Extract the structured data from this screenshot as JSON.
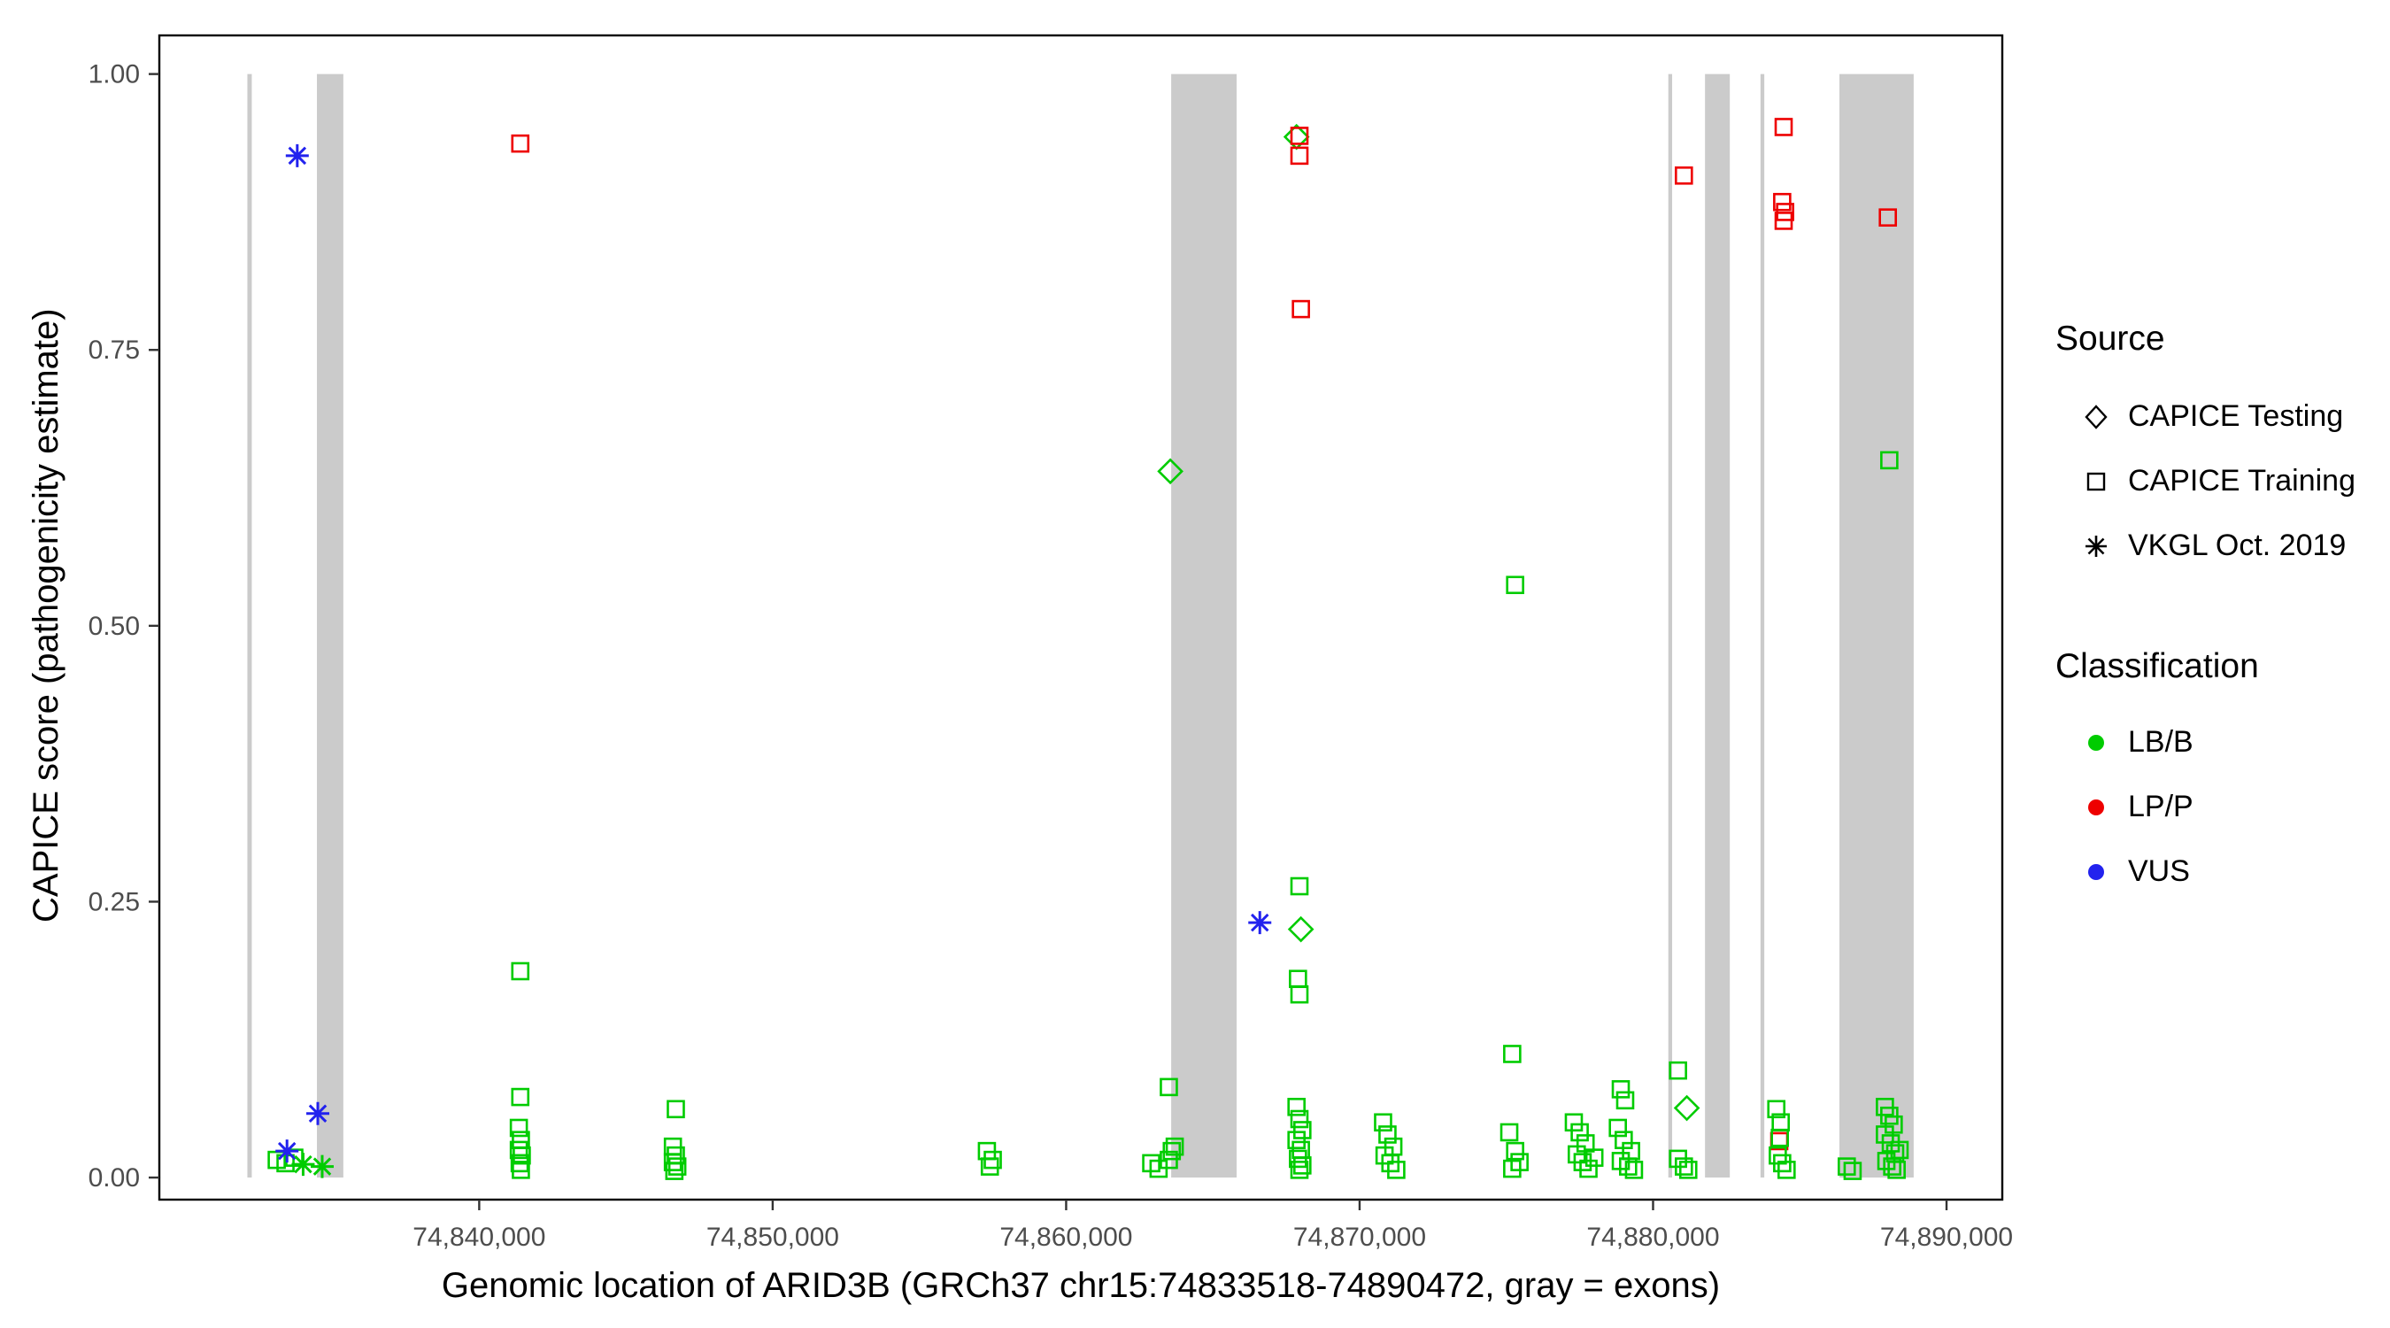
{
  "figure": {
    "x_axis_title": "Genomic location of ARID3B (GRCh37 chr15:74833518-74890472, gray = exons)",
    "y_axis_title": "CAPICE score (pathogenicity estimate)"
  },
  "legend": {
    "source": {
      "title": "Source",
      "items": [
        {
          "label": "CAPICE Testing",
          "symbol": "diamond"
        },
        {
          "label": "CAPICE Training",
          "symbol": "square"
        },
        {
          "label": "VKGL Oct. 2019",
          "symbol": "asterisk"
        }
      ]
    },
    "classification": {
      "title": "Classification",
      "items": [
        {
          "label": "LB/B",
          "color": "#00cc00"
        },
        {
          "label": "LP/P",
          "color": "#ee0000"
        },
        {
          "label": "VUS",
          "color": "#2222ee"
        }
      ]
    }
  },
  "chart_data": {
    "type": "scatter",
    "title": "",
    "xlabel": "Genomic location of ARID3B (GRCh37 chr15:74833518-74890472, gray = exons)",
    "ylabel": "CAPICE score (pathogenicity estimate)",
    "xlim": [
      74829100,
      74891900
    ],
    "ylim": [
      -0.02,
      1.035
    ],
    "grid": false,
    "legend_position": "right",
    "x_ticks": [
      {
        "value": 74840000,
        "label": "74,840,000"
      },
      {
        "value": 74850000,
        "label": "74,850,000"
      },
      {
        "value": 74860000,
        "label": "74,860,000"
      },
      {
        "value": 74870000,
        "label": "74,870,000"
      },
      {
        "value": 74880000,
        "label": "74,880,000"
      },
      {
        "value": 74890000,
        "label": "74,890,000"
      }
    ],
    "y_ticks": [
      {
        "value": 0.0,
        "label": "0.00"
      },
      {
        "value": 0.25,
        "label": "0.25"
      },
      {
        "value": 0.5,
        "label": "0.50"
      },
      {
        "value": 0.75,
        "label": "0.75"
      },
      {
        "value": 1.0,
        "label": "1.00"
      }
    ],
    "colors": {
      "LB/B": "#00cc00",
      "LP/P": "#ee0000",
      "VUS": "#2222ee",
      "exon": "#cbcbcb"
    },
    "exons": [
      [
        74832100,
        74832250
      ],
      [
        74834470,
        74835370
      ],
      [
        74863580,
        74865810
      ],
      [
        74880520,
        74880650
      ],
      [
        74881770,
        74882615
      ],
      [
        74883660,
        74883790
      ],
      [
        74886350,
        74888880
      ]
    ],
    "points_format": [
      "position",
      "score",
      "source(training|testing|vkgl)",
      "classification(LB/B|LP/P|VUS)"
    ],
    "points": [
      [
        74833100,
        0.016,
        "training",
        "LB/B"
      ],
      [
        74833400,
        0.013,
        "training",
        "LB/B"
      ],
      [
        74833700,
        0.018,
        "training",
        "LB/B"
      ],
      [
        74833450,
        0.024,
        "vkgl",
        "VUS"
      ],
      [
        74833800,
        0.926,
        "vkgl",
        "VUS"
      ],
      [
        74834000,
        0.012,
        "vkgl",
        "LB/B"
      ],
      [
        74834500,
        0.058,
        "vkgl",
        "VUS"
      ],
      [
        74834650,
        0.01,
        "vkgl",
        "LB/B"
      ],
      [
        74841400,
        0.937,
        "training",
        "LP/P"
      ],
      [
        74841400,
        0.187,
        "training",
        "LB/B"
      ],
      [
        74841400,
        0.073,
        "training",
        "LB/B"
      ],
      [
        74841350,
        0.045,
        "training",
        "LB/B"
      ],
      [
        74841420,
        0.034,
        "training",
        "LB/B"
      ],
      [
        74841350,
        0.025,
        "training",
        "LB/B"
      ],
      [
        74841450,
        0.02,
        "training",
        "LB/B"
      ],
      [
        74841380,
        0.013,
        "training",
        "LB/B"
      ],
      [
        74841420,
        0.007,
        "training",
        "LB/B"
      ],
      [
        74846700,
        0.062,
        "training",
        "LB/B"
      ],
      [
        74846600,
        0.028,
        "training",
        "LB/B"
      ],
      [
        74846700,
        0.02,
        "training",
        "LB/B"
      ],
      [
        74846600,
        0.014,
        "training",
        "LB/B"
      ],
      [
        74846750,
        0.01,
        "training",
        "LB/B"
      ],
      [
        74846650,
        0.006,
        "training",
        "LB/B"
      ],
      [
        74857300,
        0.024,
        "training",
        "LB/B"
      ],
      [
        74857500,
        0.016,
        "training",
        "LB/B"
      ],
      [
        74857400,
        0.01,
        "training",
        "LB/B"
      ],
      [
        74862900,
        0.013,
        "training",
        "LB/B"
      ],
      [
        74863150,
        0.008,
        "training",
        "LB/B"
      ],
      [
        74863500,
        0.016,
        "training",
        "LB/B"
      ],
      [
        74863600,
        0.024,
        "training",
        "LB/B"
      ],
      [
        74863700,
        0.028,
        "training",
        "LB/B"
      ],
      [
        74863500,
        0.082,
        "training",
        "LB/B"
      ],
      [
        74863550,
        0.64,
        "testing",
        "LB/B"
      ],
      [
        74866600,
        0.231,
        "vkgl",
        "VUS"
      ],
      [
        74867850,
        0.943,
        "testing",
        "LB/B"
      ],
      [
        74867950,
        0.944,
        "training",
        "LP/P"
      ],
      [
        74867950,
        0.926,
        "training",
        "LP/P"
      ],
      [
        74868000,
        0.787,
        "training",
        "LP/P"
      ],
      [
        74867950,
        0.264,
        "training",
        "LB/B"
      ],
      [
        74868000,
        0.225,
        "testing",
        "LB/B"
      ],
      [
        74867900,
        0.18,
        "training",
        "LB/B"
      ],
      [
        74867950,
        0.166,
        "training",
        "LB/B"
      ],
      [
        74867850,
        0.064,
        "training",
        "LB/B"
      ],
      [
        74867950,
        0.053,
        "training",
        "LB/B"
      ],
      [
        74868050,
        0.043,
        "training",
        "LB/B"
      ],
      [
        74867850,
        0.034,
        "training",
        "LB/B"
      ],
      [
        74868000,
        0.025,
        "training",
        "LB/B"
      ],
      [
        74867900,
        0.017,
        "training",
        "LB/B"
      ],
      [
        74868050,
        0.011,
        "training",
        "LB/B"
      ],
      [
        74867950,
        0.007,
        "training",
        "LB/B"
      ],
      [
        74870800,
        0.05,
        "training",
        "LB/B"
      ],
      [
        74870950,
        0.039,
        "training",
        "LB/B"
      ],
      [
        74871150,
        0.028,
        "training",
        "LB/B"
      ],
      [
        74870850,
        0.02,
        "training",
        "LB/B"
      ],
      [
        74871050,
        0.013,
        "training",
        "LB/B"
      ],
      [
        74871250,
        0.007,
        "training",
        "LB/B"
      ],
      [
        74875300,
        0.537,
        "training",
        "LB/B"
      ],
      [
        74875200,
        0.112,
        "training",
        "LB/B"
      ],
      [
        74875100,
        0.041,
        "training",
        "LB/B"
      ],
      [
        74875300,
        0.024,
        "training",
        "LB/B"
      ],
      [
        74875450,
        0.014,
        "training",
        "LB/B"
      ],
      [
        74875200,
        0.008,
        "training",
        "LB/B"
      ],
      [
        74877300,
        0.05,
        "training",
        "LB/B"
      ],
      [
        74877500,
        0.041,
        "training",
        "LB/B"
      ],
      [
        74877700,
        0.031,
        "training",
        "LB/B"
      ],
      [
        74877400,
        0.021,
        "training",
        "LB/B"
      ],
      [
        74877600,
        0.014,
        "training",
        "LB/B"
      ],
      [
        74877800,
        0.008,
        "training",
        "LB/B"
      ],
      [
        74878000,
        0.018,
        "training",
        "LB/B"
      ],
      [
        74878900,
        0.08,
        "training",
        "LB/B"
      ],
      [
        74879050,
        0.07,
        "training",
        "LB/B"
      ],
      [
        74878800,
        0.045,
        "training",
        "LB/B"
      ],
      [
        74879000,
        0.034,
        "training",
        "LB/B"
      ],
      [
        74879250,
        0.024,
        "training",
        "LB/B"
      ],
      [
        74878900,
        0.015,
        "training",
        "LB/B"
      ],
      [
        74879150,
        0.01,
        "training",
        "LB/B"
      ],
      [
        74879350,
        0.007,
        "training",
        "LB/B"
      ],
      [
        74881050,
        0.908,
        "training",
        "LP/P"
      ],
      [
        74880850,
        0.097,
        "training",
        "LB/B"
      ],
      [
        74881150,
        0.063,
        "testing",
        "LB/B"
      ],
      [
        74880850,
        0.017,
        "training",
        "LB/B"
      ],
      [
        74881050,
        0.01,
        "training",
        "LB/B"
      ],
      [
        74881200,
        0.007,
        "training",
        "LB/B"
      ],
      [
        74884450,
        0.952,
        "training",
        "LP/P"
      ],
      [
        74884400,
        0.884,
        "training",
        "LP/P"
      ],
      [
        74884500,
        0.875,
        "training",
        "LP/P"
      ],
      [
        74884450,
        0.867,
        "training",
        "LP/P"
      ],
      [
        74884200,
        0.062,
        "training",
        "LB/B"
      ],
      [
        74884350,
        0.05,
        "training",
        "LB/B"
      ],
      [
        74884300,
        0.033,
        "training",
        "LP/P"
      ],
      [
        74884320,
        0.036,
        "training",
        "LB/B"
      ],
      [
        74884250,
        0.02,
        "training",
        "LB/B"
      ],
      [
        74884400,
        0.013,
        "training",
        "LB/B"
      ],
      [
        74884550,
        0.007,
        "training",
        "LB/B"
      ],
      [
        74886600,
        0.01,
        "training",
        "LB/B"
      ],
      [
        74886800,
        0.006,
        "training",
        "LB/B"
      ],
      [
        74888000,
        0.87,
        "training",
        "LP/P"
      ],
      [
        74888050,
        0.65,
        "training",
        "LB/B"
      ],
      [
        74887900,
        0.064,
        "training",
        "LB/B"
      ],
      [
        74888050,
        0.056,
        "training",
        "LB/B"
      ],
      [
        74888200,
        0.048,
        "training",
        "LB/B"
      ],
      [
        74887900,
        0.039,
        "training",
        "LB/B"
      ],
      [
        74888100,
        0.031,
        "training",
        "LB/B"
      ],
      [
        74888250,
        0.022,
        "training",
        "LB/B"
      ],
      [
        74887950,
        0.015,
        "training",
        "LB/B"
      ],
      [
        74888150,
        0.01,
        "training",
        "LB/B"
      ],
      [
        74888300,
        0.007,
        "training",
        "LB/B"
      ],
      [
        74888400,
        0.025,
        "training",
        "LB/B"
      ]
    ]
  }
}
